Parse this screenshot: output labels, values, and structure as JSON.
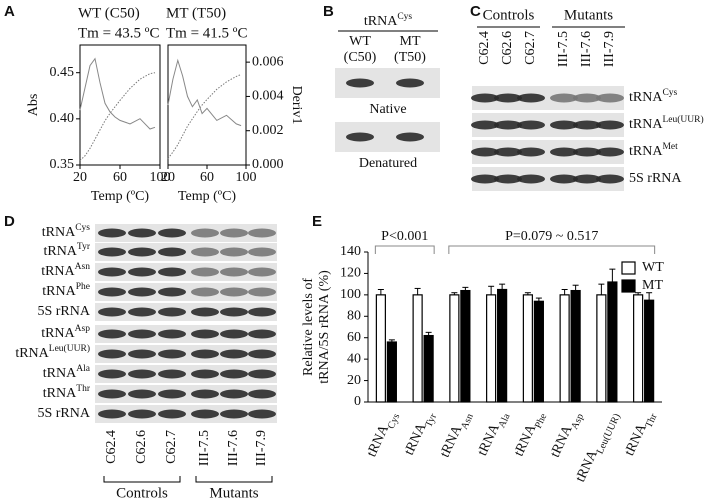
{
  "chart_data": [
    {
      "type": "line",
      "panel": "A",
      "title": "WT (C50)",
      "subtitle": "Tm = 43.5 ºC",
      "xlabel": "Temp (ºC)",
      "ylabel": "Abs",
      "x": [
        20,
        25,
        30,
        35,
        40,
        45,
        50,
        55,
        60,
        70,
        80,
        90,
        95
      ],
      "series": [
        {
          "color": "#777777",
          "style": "dotted",
          "values": [
            0.355,
            0.36,
            0.368,
            0.378,
            0.388,
            0.398,
            0.406,
            0.413,
            0.42,
            0.433,
            0.443,
            0.449,
            0.45
          ]
        },
        {
          "color": "#888888",
          "style": "solid",
          "axis": "y2",
          "values": [
            0.0032,
            0.0045,
            0.0058,
            0.0062,
            0.0048,
            0.0036,
            0.0031,
            0.0028,
            0.0026,
            0.0024,
            0.0027,
            0.0021,
            0.0022
          ]
        }
      ],
      "xlim": [
        20,
        100
      ],
      "xticks": [
        20,
        60,
        100
      ],
      "ylim": [
        0.35,
        0.48
      ],
      "yticks": [
        0.35,
        {
          "value": 0.4,
          "label": "0.40"
        },
        0.45
      ],
      "y2lim": [
        0,
        0.007
      ]
    },
    {
      "type": "line",
      "panel": "A",
      "title": "MT (T50)",
      "subtitle": "Tm = 41.5 ºC",
      "xlabel": "Temp (ºC)",
      "y2label": "Deriv1",
      "x": [
        20,
        25,
        30,
        35,
        40,
        45,
        50,
        55,
        60,
        70,
        80,
        90,
        95
      ],
      "series": [
        {
          "color": "#777777",
          "style": "dotted",
          "values": [
            0.357,
            0.364,
            0.372,
            0.382,
            0.392,
            0.4,
            0.408,
            0.415,
            0.421,
            0.432,
            0.44,
            0.446,
            0.448
          ]
        },
        {
          "color": "#888888",
          "style": "solid",
          "axis": "y2",
          "values": [
            0.0035,
            0.005,
            0.0061,
            0.0052,
            0.004,
            0.0034,
            0.0038,
            0.003,
            0.0033,
            0.0026,
            0.0029,
            0.0024,
            0.0023
          ]
        }
      ],
      "xlim": [
        20,
        100
      ],
      "xticks": [
        20,
        60,
        100
      ],
      "ylim": [
        0.35,
        0.48
      ],
      "y2lim": [
        0,
        0.007
      ],
      "y2ticks": [
        {
          "value": 0,
          "label": "0.000"
        },
        0.002,
        0.004,
        0.006
      ]
    },
    {
      "type": "bar",
      "panel": "E",
      "ylabel": [
        "Relative levels of",
        "tRNA/5S rRNA (%)"
      ],
      "categories": [
        "tRNACys",
        "tRNATyr",
        "tRNAAsn",
        "tRNAAla",
        "tRNAPhe",
        "tRNAAsp",
        "tRNALeu(UUR)",
        "tRNAThr"
      ],
      "series": [
        {
          "name": "WT",
          "color": "#ffffff",
          "values": [
            100,
            100,
            100,
            100,
            100,
            100,
            100,
            100
          ],
          "errors": [
            5,
            6,
            2,
            8,
            2,
            5,
            10,
            2
          ]
        },
        {
          "name": "MT",
          "color": "#000000",
          "values": [
            56,
            62,
            104,
            105,
            94,
            104,
            112,
            95
          ],
          "errors": [
            2,
            3,
            3,
            5,
            3,
            5,
            12,
            7
          ]
        }
      ],
      "ylim": [
        0,
        140
      ],
      "yticks": [
        0,
        20,
        40,
        60,
        80,
        100,
        120,
        140
      ],
      "annotations": [
        "P<0.001",
        "P=0.079 ~ 0.517"
      ],
      "legend": "top-right"
    }
  ],
  "panels": {
    "A": {
      "letter": "A"
    },
    "B": {
      "letter": "B",
      "header": {
        "text": "tRNA",
        "sup": "Cys"
      },
      "lanes": [
        [
          "WT",
          "(C50)"
        ],
        [
          "MT",
          "(T50)"
        ]
      ],
      "blots": [
        "Native",
        "Denatured"
      ]
    },
    "C": {
      "letter": "C",
      "groups": [
        "Controls",
        "Mutants"
      ],
      "lanes": [
        "C62.4",
        "C62.6",
        "C62.7",
        "III-7.5",
        "III-7.6",
        "III-7.9"
      ],
      "rows": [
        {
          "text": "tRNA",
          "sup": "Cys"
        },
        {
          "text": "tRNA",
          "sup": "Leu(UUR)"
        },
        {
          "text": "tRNA",
          "sup": "Met"
        },
        {
          "text": "5S rRNA"
        }
      ]
    },
    "D": {
      "letter": "D",
      "groups": [
        "Controls",
        "Mutants"
      ],
      "lanes": [
        "C62.4",
        "C62.6",
        "C62.7",
        "III-7.5",
        "III-7.6",
        "III-7.9"
      ],
      "rows": [
        {
          "text": "tRNA",
          "sup": "Cys"
        },
        {
          "text": "tRNA",
          "sup": "Tyr"
        },
        {
          "text": "tRNA",
          "sup": "Asn"
        },
        {
          "text": "tRNA",
          "sup": "Phe"
        },
        {
          "text": "5S rRNA"
        },
        {
          "text": "tRNA",
          "sup": "Asp"
        },
        {
          "text": "tRNA",
          "sup": "Leu(UUR)"
        },
        {
          "text": "tRNA",
          "sup": "Ala"
        },
        {
          "text": "tRNA",
          "sup": "Thr"
        },
        {
          "text": "5S rRNA"
        }
      ]
    },
    "E": {
      "letter": "E"
    }
  }
}
